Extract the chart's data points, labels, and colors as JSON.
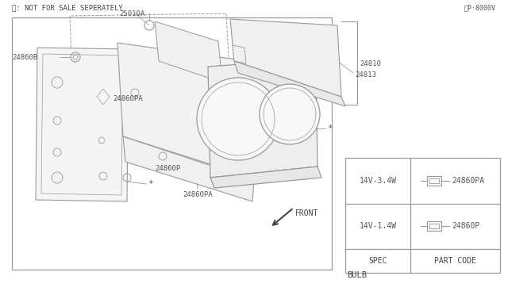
{
  "bg_color": "#ffffff",
  "line_color": "#999999",
  "text_color": "#555555",
  "dark_line": "#444444",
  "bulb_table": {
    "title": "BULB",
    "header": [
      "SPEC",
      "PART CODE"
    ],
    "rows": [
      [
        "14V-1.4W",
        "24860P"
      ],
      [
        "14V-3.4W",
        "24860PA"
      ]
    ]
  },
  "footnote": "※: NOT FOR SALE SEPERATELY",
  "diagram_ref": "②P·8000V"
}
